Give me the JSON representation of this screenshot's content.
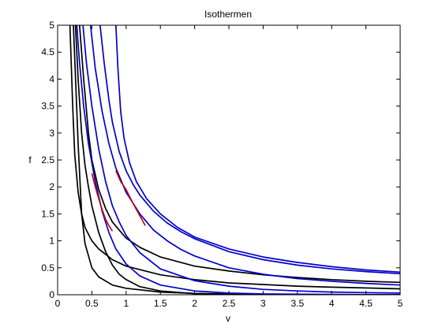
{
  "chart_data": {
    "type": "line",
    "title": "Isothermen",
    "xlabel": "v",
    "ylabel": "f",
    "xlim": [
      0,
      5
    ],
    "ylim": [
      0,
      5
    ],
    "xticks": [
      "0",
      "0.5",
      "1",
      "1.5",
      "2",
      "2.5",
      "3",
      "3.5",
      "4",
      "4.5",
      "5"
    ],
    "yticks": [
      "0",
      "0.5",
      "1",
      "1.5",
      "2",
      "2.5",
      "3",
      "3.5",
      "4",
      "4.5",
      "5"
    ],
    "grid": false,
    "legend": "none",
    "colors": {
      "black": "#000000",
      "blue": "#0000cc",
      "red": "#cc0000"
    },
    "series": [
      {
        "color": "black",
        "points": [
          [
            0.23,
            5
          ],
          [
            0.3,
            2.8
          ],
          [
            0.35,
            1.5
          ],
          [
            0.4,
            0.95
          ],
          [
            0.5,
            0.5
          ],
          [
            0.6,
            0.33
          ],
          [
            0.8,
            0.18
          ],
          [
            1,
            0.12
          ],
          [
            1.5,
            0.05
          ],
          [
            2,
            0.025
          ],
          [
            2.5,
            0.015
          ],
          [
            3,
            0.01
          ],
          [
            4,
            0.005
          ],
          [
            5,
            0.003
          ]
        ]
      },
      {
        "color": "black",
        "points": [
          [
            0.18,
            5
          ],
          [
            0.22,
            3.5
          ],
          [
            0.25,
            2.6
          ],
          [
            0.3,
            1.9
          ],
          [
            0.35,
            1.5
          ],
          [
            0.4,
            1.25
          ],
          [
            0.5,
            1
          ],
          [
            0.6,
            0.85
          ],
          [
            0.8,
            0.65
          ],
          [
            1,
            0.53
          ],
          [
            1.5,
            0.37
          ],
          [
            2,
            0.28
          ],
          [
            2.5,
            0.22
          ],
          [
            3,
            0.19
          ],
          [
            3.5,
            0.16
          ],
          [
            4,
            0.14
          ],
          [
            4.5,
            0.125
          ],
          [
            5,
            0.11
          ]
        ]
      },
      {
        "color": "black",
        "points": [
          [
            0.32,
            5
          ],
          [
            0.38,
            4
          ],
          [
            0.45,
            3
          ],
          [
            0.5,
            2.5
          ],
          [
            0.6,
            1.95
          ],
          [
            0.7,
            1.6
          ],
          [
            0.8,
            1.35
          ],
          [
            1,
            1.05
          ],
          [
            1.2,
            0.88
          ],
          [
            1.5,
            0.7
          ],
          [
            2,
            0.53
          ],
          [
            2.5,
            0.44
          ],
          [
            3,
            0.37
          ],
          [
            3.5,
            0.32
          ],
          [
            4,
            0.28
          ],
          [
            4.5,
            0.25
          ],
          [
            5,
            0.23
          ]
        ]
      },
      {
        "color": "black",
        "points": [
          [
            0.26,
            5
          ],
          [
            0.28,
            4.5
          ],
          [
            0.3,
            4
          ],
          [
            0.35,
            3
          ],
          [
            0.4,
            2.4
          ],
          [
            0.45,
            2
          ],
          [
            0.5,
            1.65
          ],
          [
            0.6,
            1.15
          ],
          [
            0.7,
            0.8
          ],
          [
            0.8,
            0.55
          ],
          [
            0.9,
            0.38
          ],
          [
            1,
            0.28
          ],
          [
            1.2,
            0.15
          ],
          [
            1.5,
            0.07
          ],
          [
            2,
            0.02
          ],
          [
            2.5,
            0.005
          ],
          [
            3,
            0
          ],
          [
            5,
            0
          ]
        ]
      },
      {
        "color": "blue",
        "points": [
          [
            0.28,
            5
          ],
          [
            0.32,
            4.3
          ],
          [
            0.38,
            3.5
          ],
          [
            0.45,
            2.8
          ],
          [
            0.55,
            2.1
          ],
          [
            0.65,
            1.55
          ],
          [
            0.75,
            1.15
          ],
          [
            0.85,
            0.85
          ],
          [
            1,
            0.57
          ],
          [
            1.2,
            0.35
          ],
          [
            1.5,
            0.18
          ],
          [
            2,
            0.07
          ],
          [
            2.5,
            0.03
          ],
          [
            3,
            0.015
          ],
          [
            4,
            0.005
          ],
          [
            5,
            0
          ]
        ]
      },
      {
        "color": "blue",
        "points": [
          [
            0.37,
            5
          ],
          [
            0.42,
            4.3
          ],
          [
            0.5,
            3.5
          ],
          [
            0.6,
            2.7
          ],
          [
            0.7,
            2.1
          ],
          [
            0.8,
            1.65
          ],
          [
            0.9,
            1.35
          ],
          [
            1,
            1.1
          ],
          [
            1.2,
            0.78
          ],
          [
            1.5,
            0.48
          ],
          [
            2,
            0.26
          ],
          [
            2.5,
            0.16
          ],
          [
            3,
            0.1
          ],
          [
            3.5,
            0.07
          ],
          [
            4,
            0.05
          ],
          [
            4.5,
            0.04
          ],
          [
            5,
            0.03
          ]
        ]
      },
      {
        "color": "blue",
        "points": [
          [
            0.48,
            5
          ],
          [
            0.55,
            4.2
          ],
          [
            0.65,
            3.4
          ],
          [
            0.75,
            2.8
          ],
          [
            0.85,
            2.35
          ],
          [
            1,
            1.9
          ],
          [
            1.2,
            1.5
          ],
          [
            1.4,
            1.2
          ],
          [
            1.6,
            1
          ],
          [
            1.8,
            0.84
          ],
          [
            2,
            0.72
          ],
          [
            2.5,
            0.5
          ],
          [
            3,
            0.38
          ],
          [
            3.5,
            0.3
          ],
          [
            4,
            0.25
          ],
          [
            4.5,
            0.21
          ],
          [
            5,
            0.18
          ]
        ]
      },
      {
        "color": "blue",
        "points": [
          [
            0.62,
            5
          ],
          [
            0.68,
            4.3
          ],
          [
            0.75,
            3.6
          ],
          [
            0.8,
            3.2
          ],
          [
            0.9,
            2.65
          ],
          [
            1,
            2.3
          ],
          [
            1.1,
            2.05
          ],
          [
            1.2,
            1.85
          ],
          [
            1.4,
            1.55
          ],
          [
            1.6,
            1.33
          ],
          [
            1.8,
            1.17
          ],
          [
            2,
            1.04
          ],
          [
            2.5,
            0.8
          ],
          [
            3,
            0.65
          ],
          [
            3.5,
            0.55
          ],
          [
            4,
            0.48
          ],
          [
            4.5,
            0.43
          ],
          [
            5,
            0.39
          ]
        ]
      },
      {
        "color": "blue",
        "points": [
          [
            0.85,
            5
          ],
          [
            0.88,
            4.2
          ],
          [
            0.92,
            3.4
          ],
          [
            0.97,
            2.9
          ],
          [
            1.05,
            2.45
          ],
          [
            1.15,
            2.1
          ],
          [
            1.3,
            1.78
          ],
          [
            1.5,
            1.5
          ],
          [
            1.75,
            1.25
          ],
          [
            2,
            1.07
          ],
          [
            2.5,
            0.85
          ],
          [
            3,
            0.7
          ],
          [
            3.5,
            0.6
          ],
          [
            4,
            0.52
          ],
          [
            4.5,
            0.46
          ],
          [
            5,
            0.42
          ]
        ]
      },
      {
        "color": "red",
        "points": [
          [
            0.5,
            2.25
          ],
          [
            0.55,
            2
          ],
          [
            0.6,
            1.78
          ],
          [
            0.65,
            1.58
          ],
          [
            0.7,
            1.4
          ],
          [
            0.75,
            1.28
          ],
          [
            0.8,
            1.18
          ]
        ]
      },
      {
        "color": "red",
        "points": [
          [
            0.85,
            2.3
          ],
          [
            0.92,
            2.1
          ],
          [
            1,
            1.95
          ],
          [
            1.08,
            1.75
          ],
          [
            1.15,
            1.58
          ],
          [
            1.22,
            1.42
          ],
          [
            1.28,
            1.28
          ]
        ]
      }
    ]
  }
}
